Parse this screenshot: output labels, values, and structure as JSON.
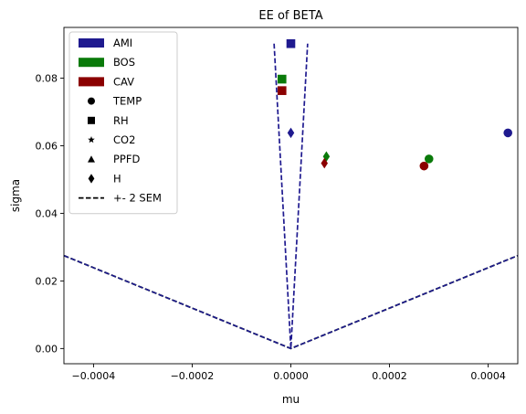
{
  "chart_data": {
    "type": "scatter",
    "title": "EE of BETA",
    "xlabel": "mu",
    "ylabel": "sigma",
    "xlim": [
      -0.00046,
      0.00046
    ],
    "ylim": [
      -0.0045,
      0.095
    ],
    "xticks": [
      {
        "value": -0.0004,
        "label": "−0.0004"
      },
      {
        "value": -0.0002,
        "label": "−0.0002"
      },
      {
        "value": 0.0,
        "label": "0.0000"
      },
      {
        "value": 0.0002,
        "label": "0.0002"
      },
      {
        "value": 0.0004,
        "label": "0.0004"
      }
    ],
    "yticks": [
      {
        "value": 0.0,
        "label": "0.00"
      },
      {
        "value": 0.02,
        "label": "0.02"
      },
      {
        "value": 0.04,
        "label": "0.04"
      },
      {
        "value": 0.06,
        "label": "0.06"
      },
      {
        "value": 0.08,
        "label": "0.08"
      }
    ],
    "grid": false,
    "legend_position": "top-left",
    "legend": [
      {
        "label": "AMI",
        "kind": "patch",
        "color": "#1f1a8f"
      },
      {
        "label": "BOS",
        "kind": "patch",
        "color": "#0a7a0a"
      },
      {
        "label": "CAV",
        "kind": "patch",
        "color": "#8b0000"
      },
      {
        "label": "TEMP",
        "kind": "marker",
        "marker": "circle",
        "color": "#000000"
      },
      {
        "label": "RH",
        "kind": "marker",
        "marker": "square",
        "color": "#000000"
      },
      {
        "label": "CO2",
        "kind": "marker",
        "marker": "star",
        "color": "#000000"
      },
      {
        "label": "PPFD",
        "kind": "marker",
        "marker": "triangle",
        "color": "#000000"
      },
      {
        "label": "H",
        "kind": "marker",
        "marker": "diamond",
        "color": "#000000"
      },
      {
        "label": "+- 2 SEM",
        "kind": "line",
        "color": "#000000"
      }
    ],
    "points": [
      {
        "group": "AMI",
        "variable": "RH",
        "x": 0.0,
        "y": 0.0902,
        "marker": "square",
        "color": "#1f1a8f"
      },
      {
        "group": "BOS",
        "variable": "RH",
        "x": -1.8e-05,
        "y": 0.0797,
        "marker": "square",
        "color": "#0a7a0a"
      },
      {
        "group": "CAV",
        "variable": "RH",
        "x": -1.8e-05,
        "y": 0.0763,
        "marker": "square",
        "color": "#8b0000"
      },
      {
        "group": "AMI",
        "variable": "H",
        "x": 0.0,
        "y": 0.0638,
        "marker": "diamond",
        "color": "#1f1a8f"
      },
      {
        "group": "BOS",
        "variable": "H",
        "x": 7.2e-05,
        "y": 0.0568,
        "marker": "diamond",
        "color": "#0a7a0a"
      },
      {
        "group": "CAV",
        "variable": "H",
        "x": 6.8e-05,
        "y": 0.0548,
        "marker": "diamond",
        "color": "#8b0000"
      },
      {
        "group": "AMI",
        "variable": "TEMP",
        "x": 0.00044,
        "y": 0.0638,
        "marker": "circle",
        "color": "#1f1a8f"
      },
      {
        "group": "BOS",
        "variable": "TEMP",
        "x": 0.00028,
        "y": 0.0561,
        "marker": "circle",
        "color": "#0a7a0a"
      },
      {
        "group": "CAV",
        "variable": "TEMP",
        "x": 0.00027,
        "y": 0.054,
        "marker": "circle",
        "color": "#8b0000"
      }
    ],
    "sem_lines": [
      {
        "name": "CAV",
        "color": "#8b0000",
        "x": [
          -0.00046,
          0.0,
          0.00046
        ],
        "y": [
          0.0275,
          0.0,
          0.0275
        ]
      },
      {
        "name": "BOS",
        "color": "#0a7a0a",
        "x": [
          -0.00046,
          0.0,
          0.00046
        ],
        "y": [
          0.0275,
          0.0,
          0.0275
        ]
      },
      {
        "name": "AMI-wide",
        "color": "#1f1a8f",
        "x": [
          -0.00046,
          0.0,
          0.00046
        ],
        "y": [
          0.0275,
          0.0,
          0.0275
        ]
      },
      {
        "name": "AMI-narrow",
        "color": "#1f1a8f",
        "x": [
          -3.4e-05,
          0.0,
          3.4e-05
        ],
        "y": [
          0.0902,
          0.0,
          0.0902
        ]
      }
    ]
  }
}
